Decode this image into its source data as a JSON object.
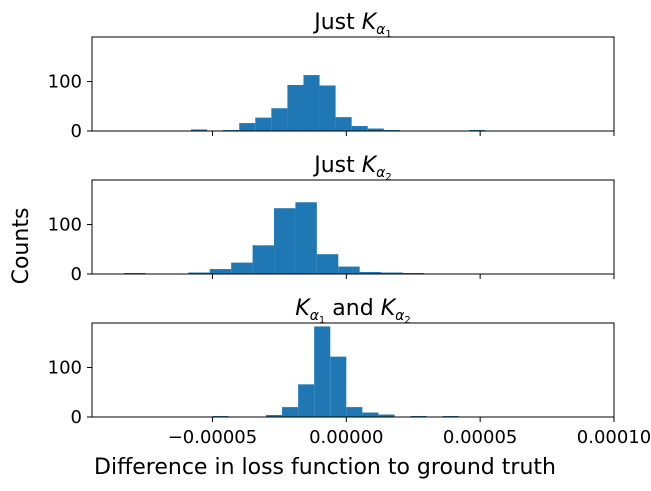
{
  "chart_data": [
    {
      "type": "bar",
      "title": {
        "pre": "Just ",
        "K": "K",
        "sub_alpha": "α",
        "sub_index": "1",
        "post": ""
      },
      "xlim": [
        -9.5e-05,
        0.0001
      ],
      "ylim": [
        0,
        190
      ],
      "yticks": [
        {
          "v": 0,
          "label": "0"
        },
        {
          "v": 100,
          "label": "100"
        }
      ],
      "bins": [
        {
          "x0": -5.8e-05,
          "x1": -5.2e-05,
          "count": 3
        },
        {
          "x0": -4.6e-05,
          "x1": -4e-05,
          "count": 2
        },
        {
          "x0": -4e-05,
          "x1": -3.4e-05,
          "count": 16
        },
        {
          "x0": -3.4e-05,
          "x1": -2.8e-05,
          "count": 27
        },
        {
          "x0": -2.8e-05,
          "x1": -2.2e-05,
          "count": 46
        },
        {
          "x0": -2.2e-05,
          "x1": -1.6e-05,
          "count": 93
        },
        {
          "x0": -1.6e-05,
          "x1": -1e-05,
          "count": 113
        },
        {
          "x0": -1e-05,
          "x1": -4e-06,
          "count": 92
        },
        {
          "x0": -4e-06,
          "x1": 2e-06,
          "count": 28
        },
        {
          "x0": 2e-06,
          "x1": 8e-06,
          "count": 10
        },
        {
          "x0": 8e-06,
          "x1": 1.4e-05,
          "count": 5
        },
        {
          "x0": 1.4e-05,
          "x1": 2e-05,
          "count": 2
        },
        {
          "x0": 4.6e-05,
          "x1": 5.2e-05,
          "count": 2
        }
      ]
    },
    {
      "type": "bar",
      "title": {
        "pre": "Just ",
        "K": "K",
        "sub_alpha": "α",
        "sub_index": "2",
        "post": ""
      },
      "xlim": [
        -9.5e-05,
        0.0001
      ],
      "ylim": [
        0,
        190
      ],
      "yticks": [
        {
          "v": 0,
          "label": "0"
        },
        {
          "v": 100,
          "label": "100"
        }
      ],
      "bins": [
        {
          "x0": -8.3e-05,
          "x1": -7.5e-05,
          "count": 2
        },
        {
          "x0": -5.9e-05,
          "x1": -5.1e-05,
          "count": 3
        },
        {
          "x0": -5.1e-05,
          "x1": -4.3e-05,
          "count": 10
        },
        {
          "x0": -4.3e-05,
          "x1": -3.5e-05,
          "count": 23
        },
        {
          "x0": -3.5e-05,
          "x1": -2.7e-05,
          "count": 58
        },
        {
          "x0": -2.7e-05,
          "x1": -1.9e-05,
          "count": 133
        },
        {
          "x0": -1.9e-05,
          "x1": -1.1e-05,
          "count": 145
        },
        {
          "x0": -1.1e-05,
          "x1": -3e-06,
          "count": 40
        },
        {
          "x0": -3e-06,
          "x1": 5e-06,
          "count": 15
        },
        {
          "x0": 5e-06,
          "x1": 1.3e-05,
          "count": 4
        },
        {
          "x0": 1.3e-05,
          "x1": 2.1e-05,
          "count": 3
        },
        {
          "x0": 2.1e-05,
          "x1": 2.9e-05,
          "count": 2
        }
      ]
    },
    {
      "type": "bar",
      "title": {
        "pre": "",
        "K": "K",
        "sub_alpha": "α",
        "sub_index": "1",
        "post": " and ",
        "K2": "K",
        "sub_alpha2": "α",
        "sub_index2": "2"
      },
      "xlim": [
        -9.5e-05,
        0.0001
      ],
      "ylim": [
        0,
        190
      ],
      "yticks": [
        {
          "v": 0,
          "label": "0"
        },
        {
          "v": 100,
          "label": "100"
        }
      ],
      "bins": [
        {
          "x0": -5e-05,
          "x1": -4.4e-05,
          "count": 2
        },
        {
          "x0": -3e-05,
          "x1": -2.4e-05,
          "count": 4
        },
        {
          "x0": -2.4e-05,
          "x1": -1.8e-05,
          "count": 20
        },
        {
          "x0": -1.8e-05,
          "x1": -1.2e-05,
          "count": 66
        },
        {
          "x0": -1.2e-05,
          "x1": -6e-06,
          "count": 183
        },
        {
          "x0": -6e-06,
          "x1": 0.0,
          "count": 122
        },
        {
          "x0": 0.0,
          "x1": 6e-06,
          "count": 20
        },
        {
          "x0": 6e-06,
          "x1": 1.2e-05,
          "count": 9
        },
        {
          "x0": 1.2e-05,
          "x1": 1.8e-05,
          "count": 5
        },
        {
          "x0": 2.4e-05,
          "x1": 3e-05,
          "count": 2
        },
        {
          "x0": 3.6e-05,
          "x1": 4.2e-05,
          "count": 2
        }
      ]
    }
  ],
  "shared": {
    "xticks": [
      {
        "v": -5e-05,
        "label": "−0.00005"
      },
      {
        "v": 0.0,
        "label": "0.00000"
      },
      {
        "v": 5e-05,
        "label": "0.00005"
      },
      {
        "v": 0.0001,
        "label": "0.00010"
      }
    ],
    "xlabel": "Difference in loss function to ground truth",
    "ylabel": "Counts",
    "bar_color": "#1f77b4"
  }
}
